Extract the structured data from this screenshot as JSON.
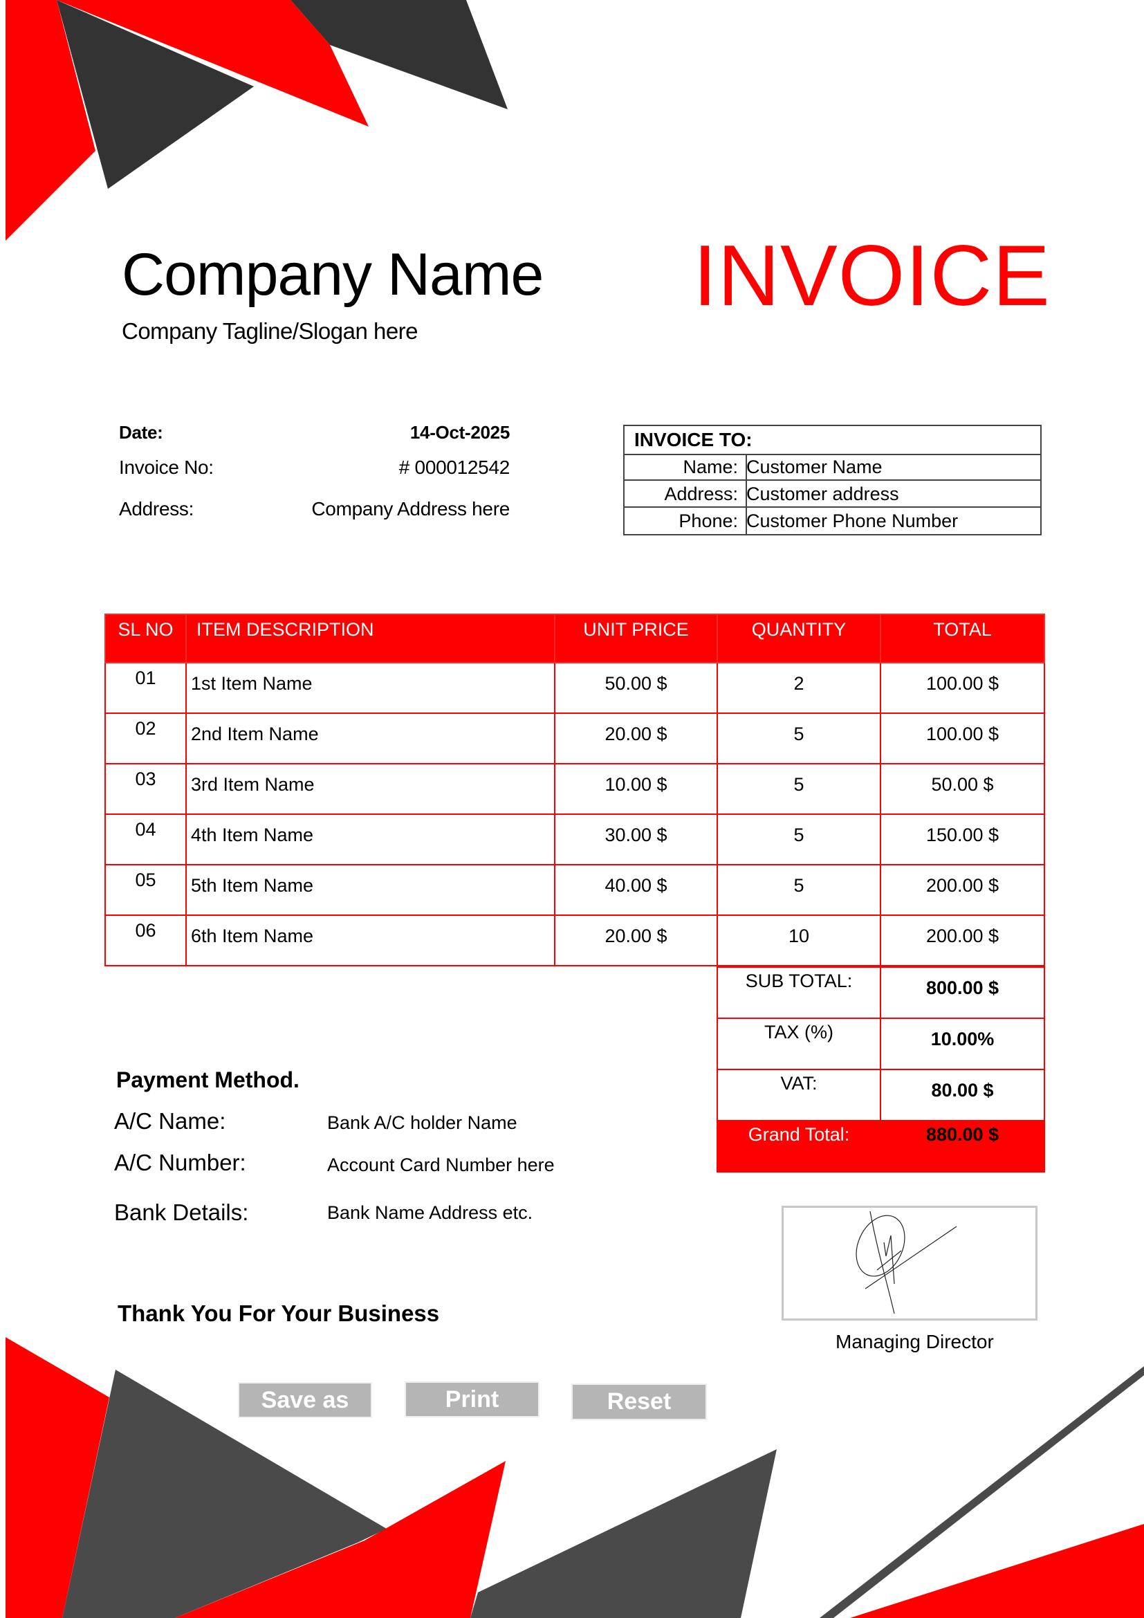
{
  "header": {
    "company_name": "Company Name",
    "tagline": "Company Tagline/Slogan here",
    "title": "INVOICE"
  },
  "meta": {
    "date_label": "Date:",
    "date_value": "14-Oct-2025",
    "invoice_no_label": "Invoice No:",
    "invoice_no_value": "# 000012542",
    "address_label": "Address:",
    "address_value": "Company Address here"
  },
  "invoice_to": {
    "heading": "INVOICE TO:",
    "rows": [
      {
        "label": "Name:",
        "value": "Customer Name"
      },
      {
        "label": "Address:",
        "value": "Customer address"
      },
      {
        "label": "Phone:",
        "value": "Customer Phone Number"
      }
    ]
  },
  "items": {
    "columns": [
      "SL NO",
      "ITEM DESCRIPTION",
      "UNIT PRICE",
      "QUANTITY",
      "TOTAL"
    ],
    "rows": [
      {
        "sl": "01",
        "description": "1st Item Name",
        "unit_price": "50.00 $",
        "quantity": "2",
        "total": "100.00 $"
      },
      {
        "sl": "02",
        "description": "2nd Item Name",
        "unit_price": "20.00 $",
        "quantity": "5",
        "total": "100.00 $"
      },
      {
        "sl": "03",
        "description": "3rd Item Name",
        "unit_price": "10.00 $",
        "quantity": "5",
        "total": "50.00 $"
      },
      {
        "sl": "04",
        "description": "4th Item Name",
        "unit_price": "30.00 $",
        "quantity": "5",
        "total": "150.00 $"
      },
      {
        "sl": "05",
        "description": "5th Item Name",
        "unit_price": "40.00 $",
        "quantity": "5",
        "total": "200.00 $"
      },
      {
        "sl": "06",
        "description": "6th Item Name",
        "unit_price": "20.00 $",
        "quantity": "10",
        "total": "200.00 $"
      }
    ]
  },
  "totals": {
    "subtotal_label": "SUB TOTAL:",
    "subtotal_value": "800.00 $",
    "tax_label": "TAX (%)",
    "tax_value": "10.00%",
    "vat_label": "VAT:",
    "vat_value": "80.00 $",
    "grand_label": "Grand Total:",
    "grand_value": "880.00 $"
  },
  "payment": {
    "title": "Payment Method.",
    "ac_name_label": "A/C Name:",
    "ac_name_value": "Bank A/C holder Name",
    "ac_number_label": "A/C Number:",
    "ac_number_value": "Account Card Number here",
    "bank_label": "Bank Details:",
    "bank_value": "Bank Name Address etc."
  },
  "footer": {
    "thanks": "Thank You For Your Business",
    "signature_title": "Managing Director"
  },
  "buttons": {
    "save_as": "Save as",
    "print": "Print",
    "reset": "Reset"
  },
  "colors": {
    "accent": "#ff0000",
    "dark": "#333333",
    "button": "#b5b5b5"
  }
}
